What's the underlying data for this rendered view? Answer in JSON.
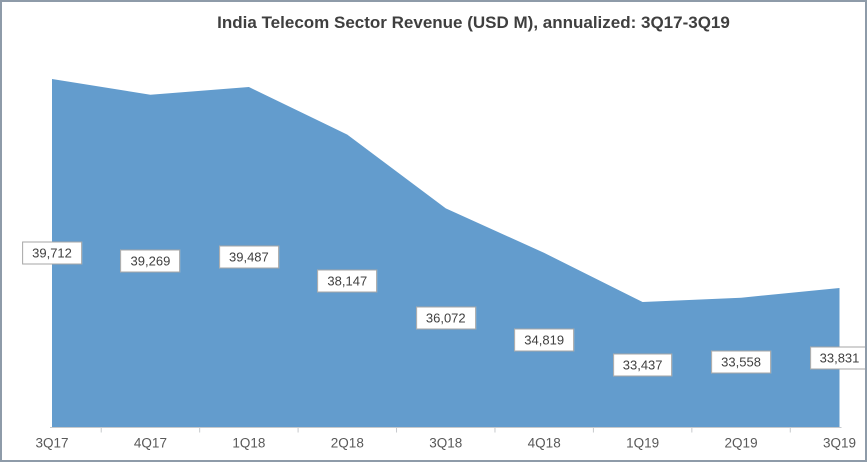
{
  "chart_data": {
    "type": "area",
    "title": "India Telecom Sector Revenue (USD M), annualized: 3Q17-3Q19",
    "categories": [
      "3Q17",
      "4Q17",
      "1Q18",
      "2Q18",
      "3Q18",
      "4Q18",
      "1Q19",
      "2Q19",
      "3Q19"
    ],
    "values": [
      39712,
      39269,
      39487,
      38147,
      36072,
      34819,
      33437,
      33558,
      33831
    ],
    "value_labels": [
      "39,712",
      "39,269",
      "39,487",
      "38,147",
      "36,072",
      "34,819",
      "33,437",
      "33,558",
      "33,831"
    ],
    "xlabel": "",
    "ylabel": "",
    "ylim_estimate": [
      30000,
      41000
    ],
    "gridlines": false,
    "legend": false,
    "y_axis_visible": false,
    "data_labels_position": "center",
    "colors": {
      "area_fill": "#639CCD",
      "title_text": "#3F3F3F",
      "label_text": "#404040",
      "label_border": "#A6A6A6",
      "axis_text": "#595959",
      "axis_line": "#C6C9CC",
      "figure_border": "#8E9BA9"
    }
  }
}
